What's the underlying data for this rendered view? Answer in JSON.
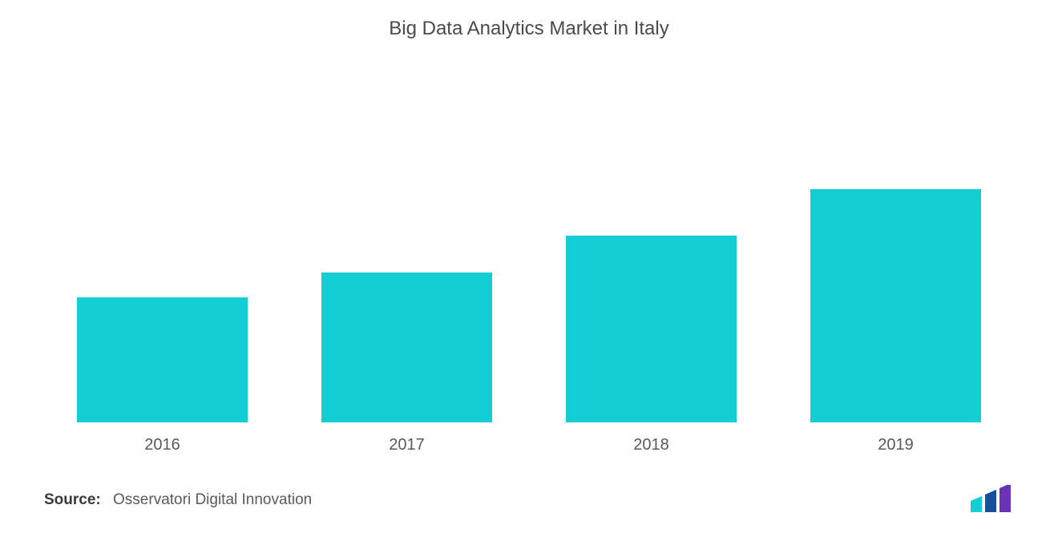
{
  "chart": {
    "type": "bar",
    "title": "Big Data Analytics Market in Italy",
    "title_fontsize": 24,
    "title_color": "#4a4a4a",
    "categories": [
      "2016",
      "2017",
      "2018",
      "2019"
    ],
    "values": [
      150,
      180,
      225,
      280
    ],
    "ylim": [
      0,
      450
    ],
    "bar_colors": [
      "#12cdd4",
      "#12cdd4",
      "#12cdd4",
      "#12cdd4"
    ],
    "bar_width_pct": 70,
    "background_color": "#ffffff",
    "xlabel_fontsize": 20,
    "xlabel_color": "#5a5a5a"
  },
  "footer": {
    "source_label": "Source:",
    "source_text": "Osservatori Digital Innovation",
    "source_fontsize": 19,
    "logo_colors": {
      "bar1": "#12cdd4",
      "bar2": "#164f9c",
      "bar3": "#6a32b5"
    }
  }
}
